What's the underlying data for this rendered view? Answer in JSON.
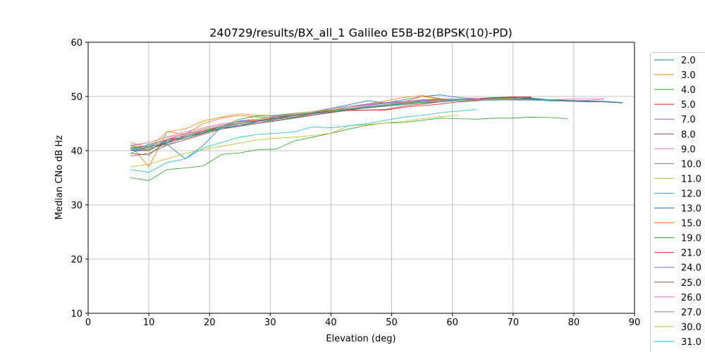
{
  "chart_data": {
    "type": "line",
    "title": "240729/results/BX_all_1 Galileo E5B-B2(BPSK(10)-PD)",
    "xlabel": "Elevation (deg)",
    "ylabel": "Median CNo dB Hz",
    "xlim": [
      0,
      90
    ],
    "ylim": [
      10,
      60
    ],
    "xticks": [
      0,
      10,
      20,
      30,
      40,
      50,
      60,
      70,
      80,
      90
    ],
    "yticks": [
      10,
      20,
      30,
      40,
      50,
      60
    ],
    "grid": true,
    "legend_position": "outside-right",
    "x_start": 7,
    "x_step": 3,
    "series": [
      {
        "name": "2.0",
        "color": "#1f77b4",
        "values": [
          39.5,
          40.8,
          41.2,
          38.5,
          41,
          44.5,
          45.5,
          45.8,
          46.2,
          46.5,
          47,
          47.8,
          48.5,
          49.2,
          48.8,
          49.4,
          50,
          50.3,
          49.8,
          49.6,
          49.8,
          49.5,
          49.6,
          49.4,
          49.3,
          49.2,
          49.1,
          48.9
        ]
      },
      {
        "name": "3.0",
        "color": "#ff7f0e",
        "values": [
          41,
          37,
          43.5,
          43,
          45,
          46,
          46.5,
          46.2,
          46,
          46.5,
          47,
          47.3,
          47.6,
          48,
          48.4,
          49,
          50,
          49.5,
          49.3,
          49.5,
          49.8,
          49.6
        ]
      },
      {
        "name": "4.0",
        "color": "#2ca02c",
        "values": [
          35,
          34.5,
          36.5,
          36.8,
          37.2,
          39.3,
          39.6,
          40.2,
          40.3,
          41.8,
          42.5,
          43.2,
          44,
          44.7,
          45.1,
          45.2,
          45.6,
          46,
          45.9,
          45.8,
          46,
          46,
          46.2,
          46.1,
          45.9
        ]
      },
      {
        "name": "5.0",
        "color": "#d62728",
        "values": [
          40,
          40,
          42,
          42.5,
          43.5,
          44,
          44.5,
          45,
          45.5,
          46,
          46.5,
          47,
          47.5,
          47.5,
          47.5,
          48,
          48.3,
          48.6,
          49,
          49.2,
          49.5,
          49.7,
          49.8
        ]
      },
      {
        "name": "7.0",
        "color": "#9467bd",
        "values": [
          40.5,
          41,
          42,
          42.8,
          43.5,
          44.5,
          45,
          45.5,
          46,
          46.6,
          47,
          47.4,
          47.8,
          48.2,
          48.5,
          48.8,
          49,
          49.2,
          49.3,
          49.5,
          49.6,
          49.7,
          49.8
        ]
      },
      {
        "name": "8.0",
        "color": "#8c564b",
        "values": [
          39,
          39.5,
          41,
          42,
          43,
          44,
          44.8,
          45.2,
          45.8,
          46.2,
          46.8,
          47.2,
          47.6,
          47.9,
          48.2,
          48.6,
          48.9,
          49.2,
          49.4,
          49.5,
          49.7,
          49.8,
          49.6
        ]
      },
      {
        "name": "9.0",
        "color": "#e377c2",
        "values": [
          41,
          41.5,
          42.5,
          43,
          44,
          44.8,
          45,
          45.6,
          46,
          46.5,
          46.9,
          47.5,
          47.8,
          48.2,
          48.5,
          48.8,
          49.1,
          49.3,
          49.4,
          49.5,
          49.5,
          49.4,
          49.3,
          49.2,
          49.2,
          49.3,
          49.5
        ]
      },
      {
        "name": "10.0",
        "color": "#7f7f7f",
        "values": [
          40,
          40.5,
          41,
          42.5,
          43.5,
          44,
          44.5,
          45,
          45.5,
          46,
          46.5,
          47,
          47.6,
          48,
          48.2,
          48.5,
          48.8,
          49,
          49.2,
          49.3,
          49.4,
          49.5,
          49.5,
          49.4,
          49.3,
          49.1,
          49,
          48.9
        ]
      },
      {
        "name": "11.0",
        "color": "#bcbd22",
        "values": [
          37,
          37.5,
          38.5,
          39.5,
          40.2,
          40.8,
          41.4,
          42,
          42.3,
          42.5,
          42.8,
          43.2,
          44.6,
          44.8,
          45.1,
          45.4,
          45.9,
          46.3,
          46.5
        ]
      },
      {
        "name": "12.0",
        "color": "#17becf",
        "values": [
          36.5,
          36,
          37.8,
          38.5,
          40.5,
          41.5,
          42.5,
          43,
          43.2,
          43.5,
          44.4,
          44.2,
          44.6,
          45,
          45.6,
          46.2,
          46.5,
          47,
          47.3,
          47.6
        ]
      },
      {
        "name": "13.0",
        "color": "#1f77b4",
        "values": [
          40,
          40.2,
          41.5,
          42.5,
          43.2,
          44.2,
          44.6,
          45.4,
          46.2,
          46.6,
          47,
          47.4,
          48,
          48.4,
          48.7,
          49,
          49.4,
          49.5,
          49.5,
          49.6,
          49.6,
          49.8,
          49.7,
          49.4,
          49.2,
          49.1,
          49,
          48.8
        ]
      },
      {
        "name": "15.0",
        "color": "#ff7f0e",
        "values": [
          41.5,
          40.5,
          43.5,
          44,
          45.5,
          46.2,
          46.8,
          46.5,
          46.4,
          46.8,
          47.2,
          47.6,
          48,
          48.6,
          49.2,
          49.8,
          50.2,
          49.6,
          49.4,
          49.6,
          49.8,
          49.7
        ]
      },
      {
        "name": "19.0",
        "color": "#2ca02c",
        "values": [
          41,
          40,
          41.8,
          42.5,
          43.3,
          44.5,
          45.8,
          46.4,
          46.5,
          46.9,
          47.2,
          47.5,
          47.6,
          47.9,
          48.3,
          48.8,
          49.1,
          49.4,
          49.5,
          49.6,
          49.7,
          49.6,
          49.5,
          49.3,
          49.3
        ]
      },
      {
        "name": "21.0",
        "color": "#d62728",
        "values": [
          40.5,
          40.8,
          41.3,
          42.8,
          43.6,
          44.5,
          45.2,
          45.6,
          46,
          46.4,
          46.8,
          47.1,
          47.4,
          47.5,
          47.6,
          48.2,
          48.6,
          49,
          49.4,
          49.6,
          49.8,
          49.9,
          49.9
        ]
      },
      {
        "name": "24.0",
        "color": "#9467bd",
        "values": [
          40,
          41.2,
          42,
          43.2,
          43.8,
          44.6,
          45.4,
          45.8,
          46.4,
          46.8,
          47.2,
          47.8,
          48.2,
          48.6,
          48.9,
          49.1,
          49.3,
          49.4,
          49.5,
          49.5,
          49.6,
          49.5,
          49.3
        ]
      },
      {
        "name": "25.0",
        "color": "#8c564b",
        "values": [
          39.5,
          39.2,
          41.8,
          42.2,
          43.2,
          44.3,
          45,
          45.4,
          46,
          46.6,
          47,
          47.2,
          47.6,
          48,
          48.4,
          48.8,
          49,
          49.2,
          49.4,
          49.6,
          49.8,
          49.8,
          49.6
        ]
      },
      {
        "name": "26.0",
        "color": "#e377c2",
        "values": [
          40.8,
          41.5,
          42.5,
          43.5,
          44.2,
          45,
          45.3,
          45.8,
          46.3,
          46.8,
          47.2,
          47.6,
          48,
          48.5,
          48.8,
          49,
          49.2,
          49.3,
          49.4,
          49.5,
          49.4,
          49.3,
          49.3,
          49.4,
          49.5,
          49.6,
          49.6
        ]
      },
      {
        "name": "27.0",
        "color": "#7f7f7f",
        "values": [
          40.2,
          40.6,
          41.6,
          42.6,
          43.3,
          44,
          44.6,
          45.2,
          45.6,
          46.1,
          46.6,
          47,
          47.5,
          47.9,
          48.2,
          48.5,
          48.8,
          49,
          49.2,
          49.3,
          49.3,
          49.4,
          49.4,
          49.2,
          49.1,
          49,
          49
        ]
      },
      {
        "name": "30.0",
        "color": "#bcbd22",
        "values": [
          40.6,
          41,
          42.2,
          43,
          43.8,
          44.5,
          45.2,
          45.8,
          46.2,
          46.8,
          47.2,
          47.5,
          47.8,
          48.1,
          48.4,
          48.7,
          49,
          49.2,
          49.2,
          49.4,
          49.5,
          49.6
        ]
      },
      {
        "name": "31.0",
        "color": "#17becf",
        "values": [
          40.3,
          40.8,
          41.8,
          42.4,
          43.5,
          44.2,
          45,
          45.4,
          45.9,
          46.4,
          46.9,
          47.2,
          47.7,
          48.1,
          48.4,
          48.6,
          48.9,
          49.1,
          49.3,
          49.4,
          49.4,
          49.5,
          49.4,
          49.2
        ]
      }
    ]
  }
}
